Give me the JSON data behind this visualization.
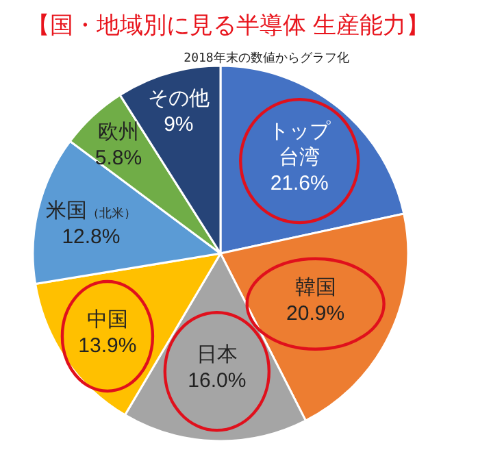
{
  "chart_data": {
    "type": "pie",
    "title": "【国・地域別に見る半導体 生産能力】",
    "subtitle": "2018年末の数値からグラフ化",
    "categories": [
      "トップ台湾",
      "韓国",
      "日本",
      "中国",
      "米国（北米）",
      "欧州",
      "その他"
    ],
    "values": [
      21.6,
      20.9,
      16.0,
      13.9,
      12.8,
      5.8,
      9
    ],
    "value_labels": [
      "21.6%",
      "20.9%",
      "16.0%",
      "13.9%",
      "12.8%",
      "5.8%",
      "9%"
    ],
    "colors": [
      "#4472c4",
      "#ed7d31",
      "#a5a5a5",
      "#ffc000",
      "#5b9bd5",
      "#70ad47",
      "#264478"
    ]
  }
}
